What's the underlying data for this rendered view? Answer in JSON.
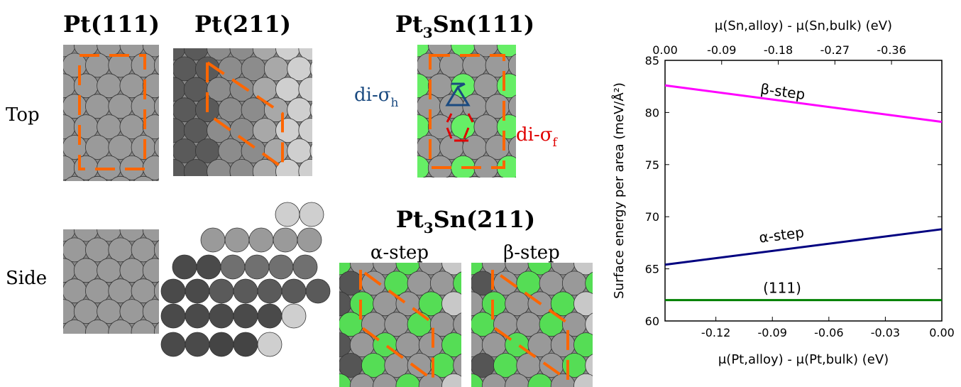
{
  "panels": {
    "pt111": "Pt(111)",
    "pt211": "Pt(211)",
    "pt3sn111": {
      "pre": "Pt",
      "sub": "3",
      "post": "Sn(111)"
    },
    "pt3sn211": {
      "pre": "Pt",
      "sub": "3",
      "post": "Sn(211)"
    },
    "top": "Top",
    "side": "Side",
    "di_sigma_h": {
      "text": "di-σ",
      "sub": "h"
    },
    "di_sigma_f": {
      "text": "di-σ",
      "sub": "f"
    },
    "alpha_step": "α-step",
    "beta_step": "β-step"
  },
  "chart_data": {
    "type": "line",
    "xlabel": "μ(Pt,alloy) - μ(Pt,bulk)  (eV)",
    "x2label": "μ(Sn,alloy) - μ(Sn,bulk)  (eV)",
    "ylabel": "Surface energy per area  (meV/Å²)",
    "xlim": [
      -0.147,
      0
    ],
    "xticks": [
      -0.12,
      -0.09,
      -0.06,
      -0.03,
      {
        "value": 0,
        "label": "0.00"
      }
    ],
    "x2lim": [
      0,
      -0.44
    ],
    "x2ticks": [
      {
        "value": 0,
        "label": "0.00"
      },
      -0.09,
      -0.18,
      -0.27,
      -0.36
    ],
    "ylim": [
      60,
      85
    ],
    "yticks": [
      60,
      65,
      70,
      75,
      80,
      85
    ],
    "x": [
      -0.147,
      0
    ],
    "series": [
      {
        "name": "β-step",
        "color": "#ff00ff",
        "values": [
          82.6,
          79.1
        ]
      },
      {
        "name": "α-step",
        "color": "#000080",
        "values": [
          65.4,
          68.8
        ]
      },
      {
        "name": "(111)",
        "color": "#008000",
        "values": [
          62.0,
          62.0
        ]
      }
    ]
  }
}
